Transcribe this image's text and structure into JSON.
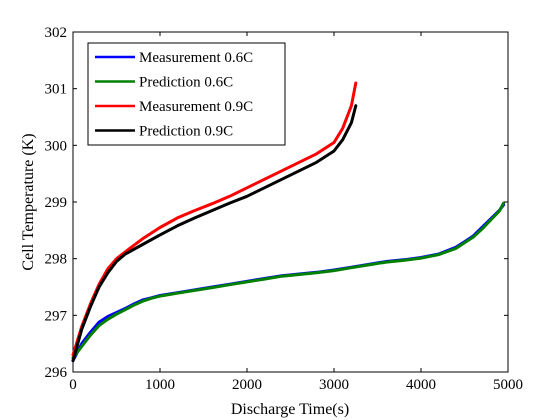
{
  "chart_data": {
    "type": "line",
    "xlabel": "Discharge Time(s)",
    "ylabel": "Cell Temperature (K)",
    "xlim": [
      0,
      5000
    ],
    "ylim": [
      296,
      302
    ],
    "xticks": [
      0,
      1000,
      2000,
      3000,
      4000,
      5000
    ],
    "yticks": [
      296,
      297,
      298,
      299,
      300,
      301,
      302
    ],
    "grid": false,
    "legend_position": "top-left",
    "series": [
      {
        "name": "Measurement 0.6C",
        "color": "#0000ff",
        "x": [
          0,
          100,
          200,
          300,
          400,
          500,
          600,
          700,
          800,
          900,
          1000,
          1200,
          1400,
          1600,
          1800,
          2000,
          2200,
          2400,
          2600,
          2800,
          3000,
          3200,
          3400,
          3600,
          3800,
          4000,
          4200,
          4400,
          4500,
          4600,
          4700,
          4800,
          4900,
          4950
        ],
        "y": [
          296.2,
          296.5,
          296.7,
          296.88,
          296.98,
          297.05,
          297.12,
          297.2,
          297.27,
          297.31,
          297.35,
          297.4,
          297.45,
          297.5,
          297.55,
          297.6,
          297.65,
          297.7,
          297.73,
          297.76,
          297.8,
          297.85,
          297.9,
          297.95,
          297.98,
          298.02,
          298.08,
          298.2,
          298.3,
          298.4,
          298.55,
          298.7,
          298.85,
          298.95
        ]
      },
      {
        "name": "Prediction 0.6C",
        "color": "#008000",
        "x": [
          0,
          100,
          200,
          300,
          400,
          500,
          600,
          700,
          800,
          900,
          1000,
          1200,
          1400,
          1600,
          1800,
          2000,
          2200,
          2400,
          2600,
          2800,
          3000,
          3200,
          3400,
          3600,
          3800,
          4000,
          4200,
          4400,
          4500,
          4600,
          4700,
          4800,
          4900,
          4950
        ],
        "y": [
          296.25,
          296.45,
          296.65,
          296.82,
          296.93,
          297.02,
          297.1,
          297.18,
          297.25,
          297.3,
          297.34,
          297.39,
          297.44,
          297.49,
          297.54,
          297.59,
          297.64,
          297.69,
          297.72,
          297.75,
          297.79,
          297.84,
          297.89,
          297.94,
          297.97,
          298.01,
          298.07,
          298.18,
          298.28,
          298.38,
          298.52,
          298.68,
          298.84,
          298.98
        ]
      },
      {
        "name": "Measurement 0.9C",
        "color": "#ff0000",
        "x": [
          0,
          100,
          200,
          300,
          400,
          500,
          600,
          800,
          1000,
          1200,
          1400,
          1600,
          1800,
          2000,
          2200,
          2400,
          2600,
          2800,
          3000,
          3100,
          3200,
          3250
        ],
        "y": [
          296.3,
          296.8,
          297.2,
          297.55,
          297.82,
          298.0,
          298.12,
          298.35,
          298.55,
          298.72,
          298.85,
          298.97,
          299.1,
          299.25,
          299.4,
          299.55,
          299.7,
          299.85,
          300.05,
          300.3,
          300.7,
          301.1
        ]
      },
      {
        "name": "Prediction 0.9C",
        "color": "#000000",
        "x": [
          0,
          100,
          200,
          300,
          400,
          500,
          600,
          800,
          1000,
          1200,
          1400,
          1600,
          1800,
          2000,
          2200,
          2400,
          2600,
          2800,
          3000,
          3100,
          3200,
          3250
        ],
        "y": [
          296.2,
          296.75,
          297.15,
          297.5,
          297.75,
          297.95,
          298.08,
          298.25,
          298.42,
          298.58,
          298.72,
          298.85,
          298.98,
          299.1,
          299.25,
          299.4,
          299.55,
          299.7,
          299.9,
          300.1,
          300.4,
          300.7
        ]
      }
    ]
  }
}
